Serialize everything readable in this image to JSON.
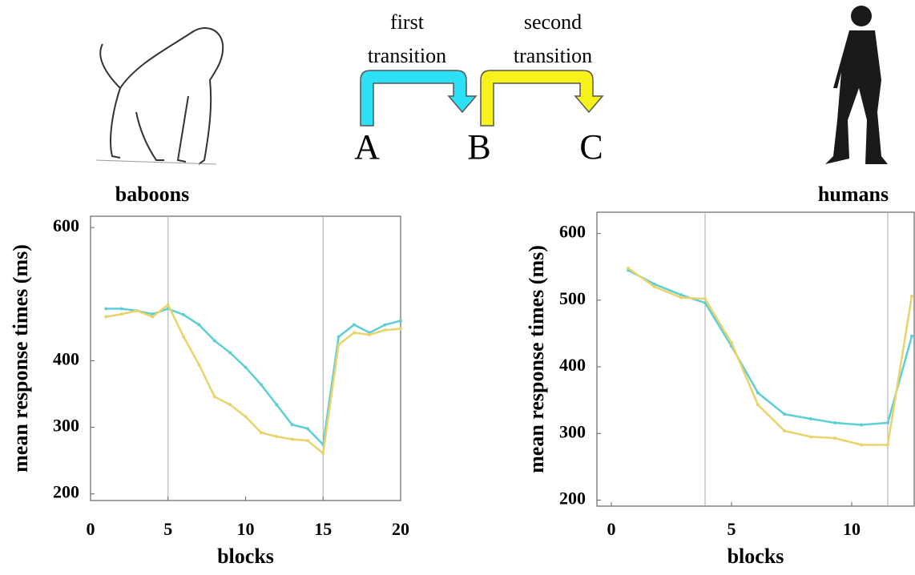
{
  "diagram": {
    "transitions": [
      {
        "lines": [
          "first",
          "transition"
        ]
      },
      {
        "lines": [
          "second",
          "transition"
        ]
      }
    ],
    "nodes": [
      "A",
      "B",
      "C"
    ]
  },
  "chart_data": [
    {
      "type": "line",
      "title": "baboons",
      "xlabel": "blocks",
      "ylabel": "mean response times (ms)",
      "x": [
        1,
        2,
        3,
        4,
        5,
        6,
        7,
        8,
        9,
        10,
        11,
        12,
        13,
        14,
        15,
        16,
        17,
        18,
        19,
        20
      ],
      "series": [
        {
          "color": "#5ccfd6",
          "values": [
            478,
            478,
            475,
            470,
            478,
            469,
            454,
            430,
            412,
            390,
            364,
            334,
            304,
            298,
            274,
            436,
            454,
            442,
            454,
            460
          ]
        },
        {
          "color": "#e8d46a",
          "values": [
            466,
            470,
            475,
            466,
            484,
            436,
            394,
            346,
            334,
            316,
            292,
            286,
            282,
            280,
            261,
            424,
            442,
            439,
            446,
            448
          ]
        }
      ],
      "xlim": [
        0,
        20
      ],
      "xticks": [
        0,
        5,
        10,
        15,
        20
      ],
      "ylim": [
        190,
        617
      ],
      "yticks": [
        200,
        300,
        400,
        600
      ],
      "vlines": [
        5,
        15
      ]
    },
    {
      "type": "line",
      "title": "humans",
      "xlabel": "blocks",
      "ylabel": "mean response times (ms)",
      "x": [
        0.7,
        1.8,
        2.9,
        3.9,
        5,
        6.1,
        7.2,
        8.3,
        9.3,
        10.4,
        11.5,
        12.5
      ],
      "series": [
        {
          "color": "#5ccfd6",
          "values": [
            545,
            524,
            508,
            496,
            431,
            361,
            329,
            322,
            316,
            313,
            316,
            446
          ]
        },
        {
          "color": "#e8d46a",
          "values": [
            548,
            520,
            504,
            502,
            436,
            343,
            304,
            295,
            293,
            283,
            283,
            506
          ]
        }
      ],
      "xlim": [
        -0.6,
        12.6
      ],
      "xticks": [
        0,
        5,
        10
      ],
      "ylim": [
        191,
        632
      ],
      "yticks": [
        200,
        300,
        400,
        500,
        600
      ],
      "vlines": [
        3.9,
        11.5
      ]
    }
  ]
}
